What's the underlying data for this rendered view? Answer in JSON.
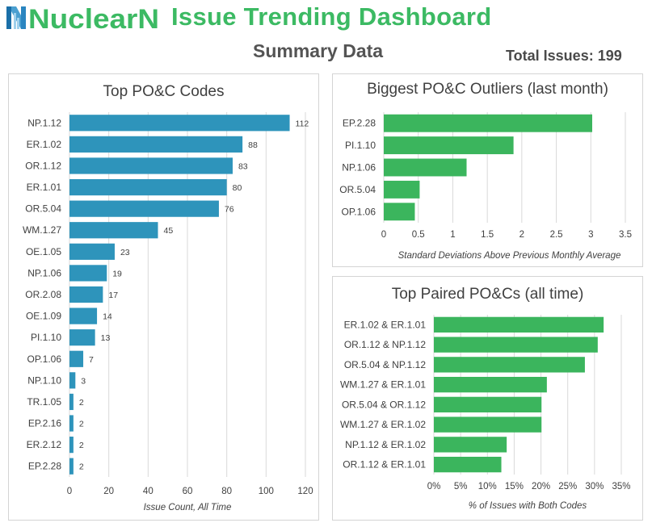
{
  "header": {
    "logo_text": "NuclearN",
    "title": "Issue Trending Dashboard",
    "summary_title": "Summary Data",
    "total_label": "Total Issues:",
    "total_value": "199"
  },
  "colors": {
    "blue_bar": "#2e94bb",
    "green_bar": "#3bb55d",
    "title_green": "#3cba63",
    "logo_blue": "#4a9fd0"
  },
  "chart_data": [
    {
      "type": "bar",
      "orientation": "horizontal",
      "title": "Top PO&C Codes",
      "xlabel": "Issue Count, All Time",
      "categories": [
        "NP.1.12",
        "ER.1.02",
        "OR.1.12",
        "ER.1.01",
        "OR.5.04",
        "WM.1.27",
        "OE.1.05",
        "NP.1.06",
        "OR.2.08",
        "OE.1.09",
        "PI.1.10",
        "OP.1.06",
        "NP.1.10",
        "TR.1.05",
        "EP.2.16",
        "ER.2.12",
        "EP.2.28"
      ],
      "values": [
        112,
        88,
        83,
        80,
        76,
        45,
        23,
        19,
        17,
        14,
        13,
        7,
        3,
        2,
        2,
        2,
        2
      ],
      "xlim": [
        0,
        120
      ],
      "xticks": [
        0,
        20,
        40,
        60,
        80,
        100,
        120
      ],
      "data_labels": true,
      "grid": "vertical"
    },
    {
      "type": "bar",
      "orientation": "horizontal",
      "title": "Biggest PO&C Outliers (last month)",
      "xlabel": "Standard Deviations Above Previous Monthly Average",
      "categories": [
        "EP.2.28",
        "PI.1.10",
        "NP.1.06",
        "OR.5.04",
        "OP.1.06"
      ],
      "values": [
        3.02,
        1.88,
        1.2,
        0.52,
        0.45
      ],
      "xlim": [
        0,
        3.5
      ],
      "xticks": [
        "0",
        "0.5",
        "1",
        "1.5",
        "2",
        "2.5",
        "3",
        "3.5"
      ],
      "grid": "vertical"
    },
    {
      "type": "bar",
      "orientation": "horizontal",
      "title": "Top Paired PO&Cs (all time)",
      "xlabel": "% of Issues with Both Codes",
      "categories": [
        "ER.1.02 & ER.1.01",
        "OR.1.12 & NP.1.12",
        "OR.5.04 & NP.1.12",
        "WM.1.27 & ER.1.01",
        "OR.5.04 & OR.1.12",
        "WM.1.27 & ER.1.02",
        "NP.1.12 & ER.1.02",
        "OR.1.12 & ER.1.01"
      ],
      "values": [
        31.7,
        30.6,
        28.2,
        21.1,
        20.1,
        20.1,
        13.6,
        12.6
      ],
      "xlim": [
        0,
        35
      ],
      "xticks": [
        "0%",
        "5%",
        "10%",
        "15%",
        "20%",
        "25%",
        "30%",
        "35%"
      ],
      "grid": "vertical"
    }
  ]
}
